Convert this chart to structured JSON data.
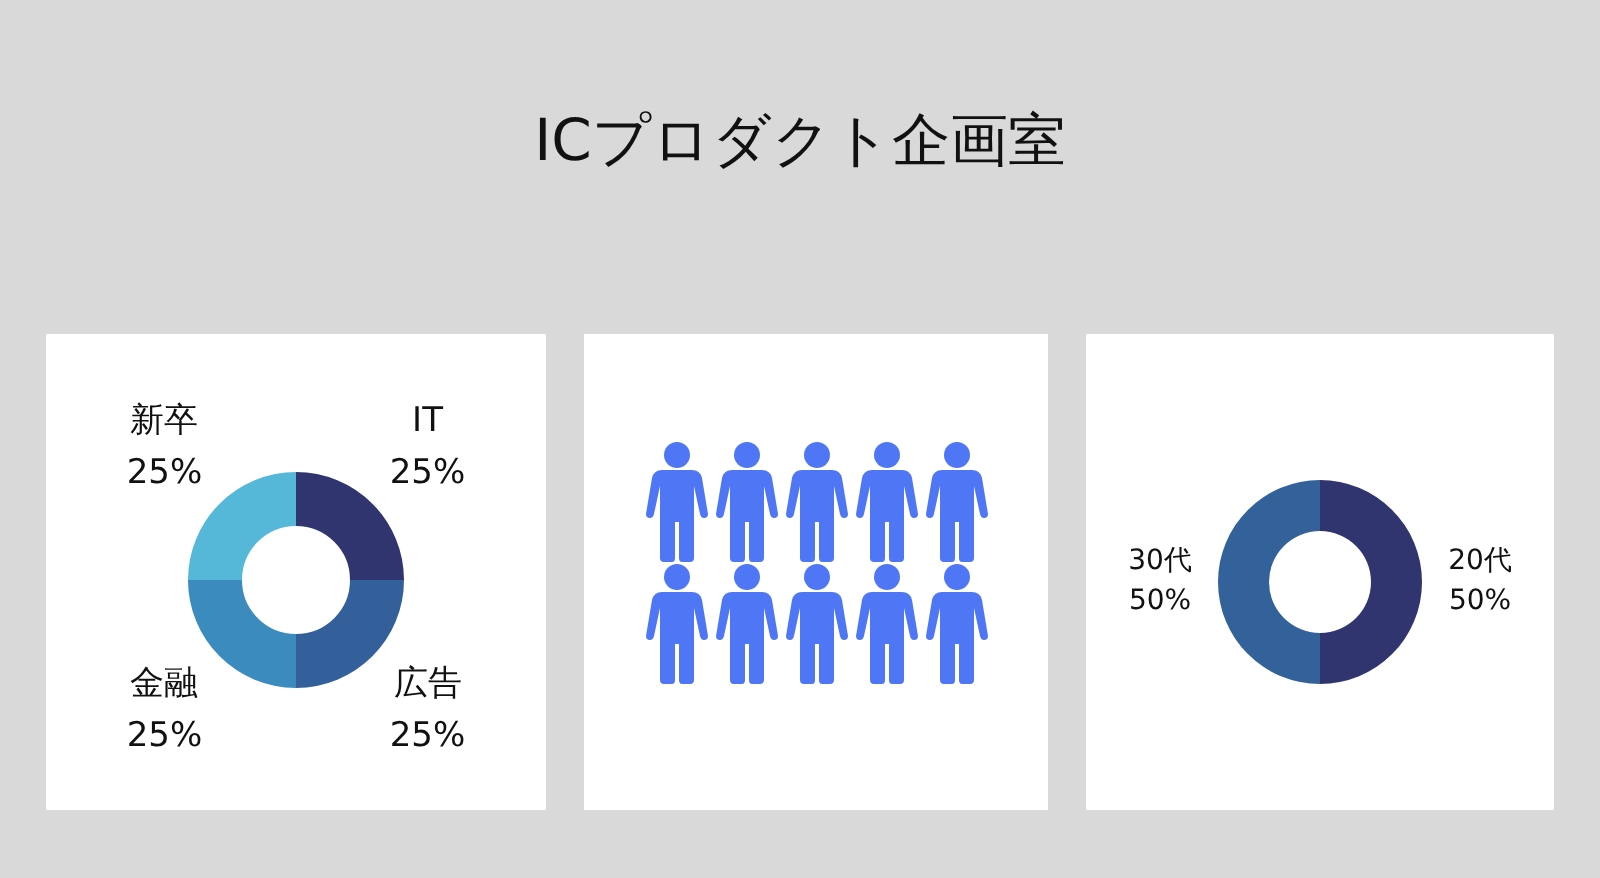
{
  "chart_data": [
    {
      "type": "donut",
      "title": "ICプロダクト企画室",
      "categories": [
        "IT",
        "広告",
        "金融",
        "新卒"
      ],
      "values": [
        25,
        25,
        25,
        25
      ],
      "colors": [
        "#30346f",
        "#33609b",
        "#3c8bbf",
        "#55b8d8"
      ],
      "value_labels": [
        "25%",
        "25%",
        "25%",
        "25%"
      ]
    },
    {
      "type": "donut",
      "categories": [
        "20代",
        "30代"
      ],
      "values": [
        50,
        50
      ],
      "colors": [
        "#30356f",
        "#33619a"
      ],
      "value_labels": [
        "50%",
        "50%"
      ]
    }
  ]
}
